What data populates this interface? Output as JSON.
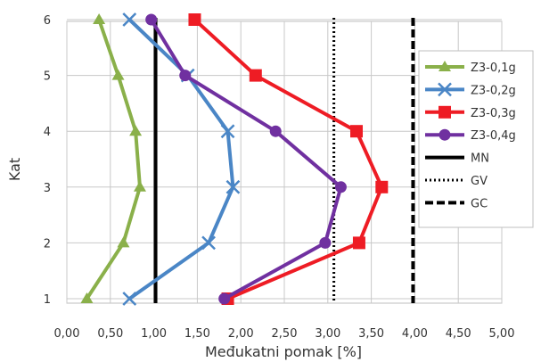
{
  "chart_data": {
    "type": "line",
    "title": "",
    "xlabel": "Međukatni pomak [%]",
    "ylabel": "Kat",
    "xlim": [
      0,
      5
    ],
    "ylim": [
      0.8,
      6.2
    ],
    "grid": true,
    "legend_position": "right",
    "x_ticks": [
      "0,00",
      "0,50",
      "1,00",
      "1,50",
      "2,00",
      "2,50",
      "3,00",
      "3,50",
      "4,00",
      "4,50",
      "5,00"
    ],
    "y_ticks": [
      "1",
      "2",
      "3",
      "4",
      "5",
      "6"
    ],
    "series": [
      {
        "name": "Z3-0,1g",
        "color": "#8ab04a",
        "marker": "triangle",
        "points": [
          [
            0.23,
            1
          ],
          [
            0.65,
            2
          ],
          [
            0.84,
            3
          ],
          [
            0.79,
            4
          ],
          [
            0.59,
            5
          ],
          [
            0.37,
            6
          ]
        ]
      },
      {
        "name": "Z3-0,2g",
        "color": "#4a86c6",
        "marker": "x",
        "points": [
          [
            0.72,
            1
          ],
          [
            1.63,
            2
          ],
          [
            1.91,
            3
          ],
          [
            1.85,
            4
          ],
          [
            1.39,
            5
          ],
          [
            0.72,
            6
          ]
        ]
      },
      {
        "name": "Z3-0,3g",
        "color": "#ee1c24",
        "marker": "square",
        "points": [
          [
            1.85,
            1
          ],
          [
            3.36,
            2
          ],
          [
            3.62,
            3
          ],
          [
            3.33,
            4
          ],
          [
            2.17,
            5
          ],
          [
            1.47,
            6
          ]
        ]
      },
      {
        "name": "Z3-0,4g",
        "color": "#7030a0",
        "marker": "circle",
        "points": [
          [
            1.81,
            1
          ],
          [
            2.97,
            2
          ],
          [
            3.15,
            3
          ],
          [
            2.4,
            4
          ],
          [
            1.36,
            5
          ],
          [
            0.97,
            6
          ]
        ]
      }
    ],
    "reference_lines": [
      {
        "name": "MN",
        "x": 1.02,
        "color": "#000000",
        "style": "solid"
      },
      {
        "name": "GV",
        "x": 3.07,
        "color": "#000000",
        "style": "dotted"
      },
      {
        "name": "GC",
        "x": 3.98,
        "color": "#000000",
        "style": "dashed"
      }
    ]
  }
}
